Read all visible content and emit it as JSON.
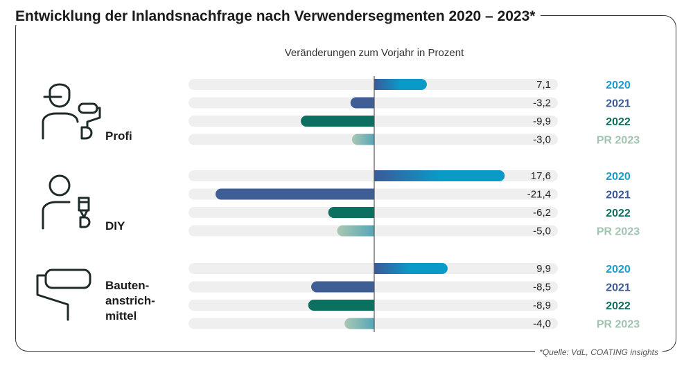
{
  "title": "Entwicklung der Inlandsnachfrage nach Verwendersegmenten 2020 – 2023*",
  "source": "*Quelle: VdL, COATING insights",
  "chart_data": {
    "type": "bar",
    "orientation": "horizontal",
    "subtitle": "Veränderungen zum Vorjahr in Prozent",
    "series_labels": [
      "2020",
      "2021",
      "2022",
      "PR 2023"
    ],
    "colors": {
      "2020": "#1a9ccc",
      "2021": "#3c5a96",
      "2022": "#107060",
      "PR 2023": "#a0c4b0"
    },
    "xlim": [
      -25,
      25
    ],
    "groups": [
      {
        "name": "Profi",
        "icon": "painter-with-roller-icon",
        "values": [
          7.1,
          -3.2,
          -9.9,
          -3.0
        ],
        "labels": [
          "7,1",
          "-3,2",
          "-9,9",
          "-3,0"
        ]
      },
      {
        "name": "DIY",
        "icon": "person-with-brush-icon",
        "values": [
          17.6,
          -21.4,
          -6.2,
          -5.0
        ],
        "labels": [
          "17,6",
          "-21,4",
          "-6,2",
          "-5,0"
        ]
      },
      {
        "name": "Bauten-\nanstrich-\nmittel",
        "icon": "paint-roller-icon",
        "values": [
          9.9,
          -8.5,
          -8.9,
          -4.0
        ],
        "labels": [
          "9,9",
          "-8,5",
          "-8,9",
          "-4,0"
        ]
      }
    ]
  }
}
